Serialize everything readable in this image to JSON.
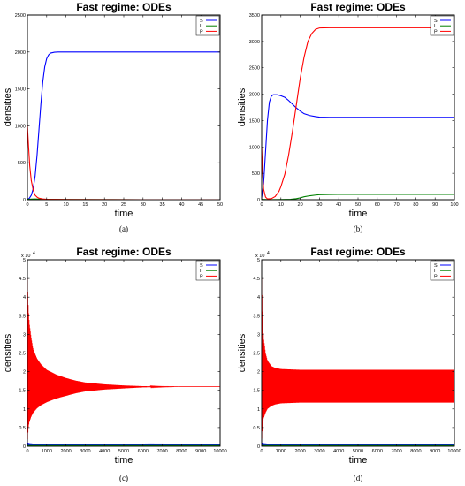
{
  "chart_data": [
    {
      "type": "line",
      "title": "Fast regime: ODEs",
      "xlabel": "time",
      "ylabel": "densities",
      "caption": "(a)",
      "xlim": [
        0,
        50
      ],
      "ylim": [
        0,
        2500
      ],
      "xticks": [
        0,
        5,
        10,
        15,
        20,
        25,
        30,
        35,
        40,
        45,
        50
      ],
      "yticks": [
        0,
        500,
        1000,
        1500,
        2000,
        2500
      ],
      "y_exponent": "",
      "legend_position": "top-right",
      "series": [
        {
          "name": "S",
          "color": "#0000ff",
          "x": [
            0,
            0.5,
            1,
            1.5,
            2,
            2.5,
            3,
            3.5,
            4,
            4.5,
            5,
            5.5,
            6,
            7,
            8,
            10,
            15,
            20,
            30,
            40,
            50
          ],
          "y": [
            5,
            20,
            60,
            150,
            320,
            600,
            950,
            1300,
            1600,
            1800,
            1910,
            1960,
            1985,
            1997,
            2000,
            2000,
            2000,
            2000,
            2000,
            2000,
            2000
          ]
        },
        {
          "name": "I",
          "color": "#008000",
          "x": [
            0,
            1,
            2,
            5,
            10,
            20,
            30,
            40,
            50
          ],
          "y": [
            5,
            8,
            10,
            6,
            3,
            1,
            0,
            0,
            0
          ]
        },
        {
          "name": "P",
          "color": "#ff0000",
          "x": [
            0,
            0.3,
            0.6,
            1,
            1.5,
            2,
            2.5,
            3,
            4,
            5,
            10,
            20,
            30,
            40,
            50
          ],
          "y": [
            1000,
            720,
            460,
            260,
            130,
            60,
            35,
            20,
            10,
            5,
            2,
            1,
            0,
            0,
            0
          ]
        }
      ]
    },
    {
      "type": "line",
      "title": "Fast regime: ODEs",
      "xlabel": "time",
      "ylabel": "densities",
      "caption": "(b)",
      "xlim": [
        0,
        100
      ],
      "ylim": [
        0,
        3500
      ],
      "xticks": [
        0,
        10,
        20,
        30,
        40,
        50,
        60,
        70,
        80,
        90,
        100
      ],
      "yticks": [
        0,
        500,
        1000,
        1500,
        2000,
        2500,
        3000,
        3500
      ],
      "y_exponent": "",
      "legend_position": "top-right",
      "series": [
        {
          "name": "S",
          "color": "#0000ff",
          "x": [
            0,
            1,
            2,
            3,
            4,
            5,
            6,
            8,
            10,
            12,
            14,
            16,
            18,
            20,
            22,
            25,
            28,
            30,
            35,
            40,
            60,
            80,
            100
          ],
          "y": [
            40,
            300,
            900,
            1500,
            1850,
            1960,
            1990,
            1990,
            1970,
            1940,
            1880,
            1810,
            1740,
            1680,
            1630,
            1595,
            1575,
            1565,
            1560,
            1560,
            1560,
            1560,
            1560
          ]
        },
        {
          "name": "I",
          "color": "#008000",
          "x": [
            0,
            5,
            10,
            15,
            18,
            20,
            22,
            25,
            28,
            30,
            35,
            40,
            60,
            80,
            100
          ],
          "y": [
            5,
            2,
            3,
            8,
            20,
            35,
            55,
            75,
            88,
            95,
            100,
            102,
            102,
            102,
            102
          ]
        },
        {
          "name": "P",
          "color": "#ff0000",
          "x": [
            0,
            0.5,
            1,
            2,
            3,
            5,
            7,
            9,
            10,
            12,
            14,
            16,
            18,
            20,
            22,
            24,
            26,
            28,
            30,
            35,
            40,
            60,
            80,
            100
          ],
          "y": [
            1000,
            500,
            200,
            50,
            15,
            20,
            60,
            160,
            250,
            480,
            850,
            1300,
            1800,
            2300,
            2700,
            3000,
            3150,
            3230,
            3255,
            3260,
            3260,
            3260,
            3260,
            3260
          ]
        }
      ]
    },
    {
      "type": "line",
      "title": "Fast regime: ODEs",
      "xlabel": "time",
      "ylabel": "densities",
      "caption": "(c)",
      "xlim": [
        0,
        10000
      ],
      "ylim": [
        0,
        5
      ],
      "xticks": [
        0,
        1000,
        2000,
        3000,
        4000,
        5000,
        6000,
        7000,
        8000,
        9000,
        10000
      ],
      "yticks": [
        0,
        0.5,
        1,
        1.5,
        2,
        2.5,
        3,
        3.5,
        4,
        4.5,
        5
      ],
      "y_exponent": "4",
      "legend_position": "top-right",
      "series": [
        {
          "name": "S",
          "color": "#0000ff",
          "envelope_x": [
            0,
            100,
            500,
            10000
          ],
          "upper": [
            0.1,
            0.08,
            0.06,
            0.04
          ],
          "lower": [
            0,
            0.01,
            0.02,
            0.03
          ]
        },
        {
          "name": "I",
          "color": "#008000",
          "envelope_x": [
            0,
            10000
          ],
          "upper": [
            0.03,
            0.03
          ],
          "lower": [
            0,
            0
          ]
        },
        {
          "name": "P",
          "color": "#ff0000",
          "envelope_x": [
            0,
            50,
            100,
            200,
            300,
            500,
            700,
            1000,
            1500,
            2000,
            2500,
            3000,
            4000,
            5000,
            6000,
            7000,
            8000,
            9000,
            10000
          ],
          "upper": [
            4.5,
            3.7,
            3.3,
            2.9,
            2.6,
            2.35,
            2.2,
            2.05,
            1.92,
            1.83,
            1.76,
            1.71,
            1.66,
            1.63,
            1.61,
            1.6,
            1.6,
            1.6,
            1.6
          ],
          "lower": [
            0.1,
            0.5,
            0.65,
            0.8,
            0.9,
            1.02,
            1.1,
            1.18,
            1.28,
            1.35,
            1.42,
            1.47,
            1.52,
            1.55,
            1.58,
            1.59,
            1.6,
            1.6,
            1.6
          ]
        }
      ]
    },
    {
      "type": "line",
      "title": "Fast regime: ODEs",
      "xlabel": "time",
      "ylabel": "densities",
      "caption": "(d)",
      "xlim": [
        0,
        10000
      ],
      "ylim": [
        0,
        5
      ],
      "xticks": [
        0,
        1000,
        2000,
        3000,
        4000,
        5000,
        6000,
        7000,
        8000,
        9000,
        10000
      ],
      "yticks": [
        0,
        0.5,
        1,
        1.5,
        2,
        2.5,
        3,
        3.5,
        4,
        4.5,
        5
      ],
      "y_exponent": "4",
      "legend_position": "top-right",
      "series": [
        {
          "name": "S",
          "color": "#0000ff",
          "envelope_x": [
            0,
            100,
            500,
            10000
          ],
          "upper": [
            0.1,
            0.08,
            0.06,
            0.06
          ],
          "lower": [
            0,
            0.01,
            0.02,
            0.02
          ]
        },
        {
          "name": "I",
          "color": "#008000",
          "envelope_x": [
            0,
            10000
          ],
          "upper": [
            0.03,
            0.03
          ],
          "lower": [
            0,
            0
          ]
        },
        {
          "name": "P",
          "color": "#ff0000",
          "envelope_x": [
            0,
            50,
            100,
            200,
            300,
            500,
            700,
            1000,
            1500,
            2000,
            3000,
            5000,
            8000,
            10000
          ],
          "upper": [
            4.5,
            3.5,
            2.9,
            2.5,
            2.3,
            2.15,
            2.1,
            2.07,
            2.06,
            2.05,
            2.05,
            2.05,
            2.05,
            2.05
          ],
          "lower": [
            0.1,
            0.55,
            0.75,
            0.9,
            1.0,
            1.08,
            1.12,
            1.15,
            1.16,
            1.17,
            1.17,
            1.17,
            1.17,
            1.17
          ]
        }
      ]
    }
  ]
}
